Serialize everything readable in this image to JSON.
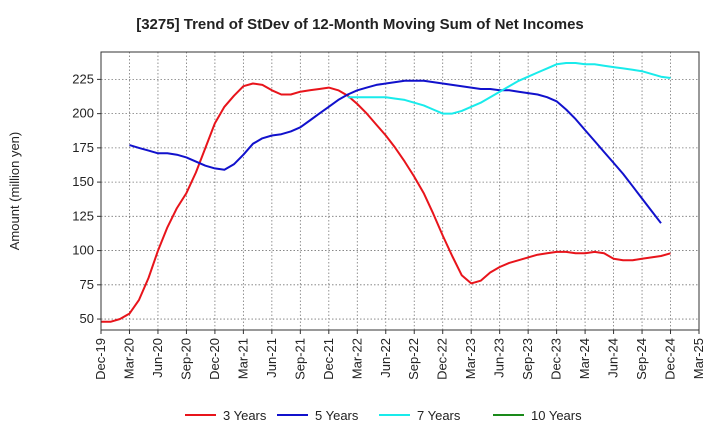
{
  "chart_data": {
    "type": "line",
    "title": "[3275]  Trend of StDev of 12-Month Moving Sum of Net Incomes",
    "ylabel": "Amount (million yen)",
    "xlabel": "",
    "ylim": [
      42,
      245
    ],
    "yticks": [
      50,
      75,
      100,
      125,
      150,
      175,
      200,
      225
    ],
    "xlim": [
      "2019-12",
      "2025-03"
    ],
    "xtick_labels": [
      "Dec-19",
      "Mar-20",
      "Jun-20",
      "Sep-20",
      "Dec-20",
      "Mar-21",
      "Jun-21",
      "Sep-21",
      "Dec-21",
      "Mar-22",
      "Jun-22",
      "Sep-22",
      "Dec-22",
      "Mar-23",
      "Jun-23",
      "Sep-23",
      "Dec-23",
      "Mar-24",
      "Jun-24",
      "Sep-24",
      "Dec-24",
      "Mar-25"
    ],
    "grid": true,
    "legend_position": "bottom",
    "series": [
      {
        "name": "3 Years",
        "color": "#e8141b",
        "points": [
          [
            "2019-12",
            48
          ],
          [
            "2020-01",
            48
          ],
          [
            "2020-02",
            50
          ],
          [
            "2020-03",
            54
          ],
          [
            "2020-04",
            64
          ],
          [
            "2020-05",
            80
          ],
          [
            "2020-06",
            100
          ],
          [
            "2020-07",
            117
          ],
          [
            "2020-08",
            131
          ],
          [
            "2020-09",
            142
          ],
          [
            "2020-10",
            157
          ],
          [
            "2020-11",
            175
          ],
          [
            "2020-12",
            193
          ],
          [
            "2021-01",
            205
          ],
          [
            "2021-02",
            213
          ],
          [
            "2021-03",
            220
          ],
          [
            "2021-04",
            222
          ],
          [
            "2021-05",
            221
          ],
          [
            "2021-06",
            217
          ],
          [
            "2021-07",
            214
          ],
          [
            "2021-08",
            214
          ],
          [
            "2021-09",
            216
          ],
          [
            "2021-10",
            217
          ],
          [
            "2021-11",
            218
          ],
          [
            "2021-12",
            219
          ],
          [
            "2022-01",
            217
          ],
          [
            "2022-02",
            213
          ],
          [
            "2022-03",
            207
          ],
          [
            "2022-04",
            200
          ],
          [
            "2022-05",
            192
          ],
          [
            "2022-06",
            184
          ],
          [
            "2022-07",
            175
          ],
          [
            "2022-08",
            165
          ],
          [
            "2022-09",
            154
          ],
          [
            "2022-10",
            142
          ],
          [
            "2022-11",
            127
          ],
          [
            "2022-12",
            111
          ],
          [
            "2023-01",
            96
          ],
          [
            "2023-02",
            82
          ],
          [
            "2023-03",
            76
          ],
          [
            "2023-04",
            78
          ],
          [
            "2023-05",
            84
          ],
          [
            "2023-06",
            88
          ],
          [
            "2023-07",
            91
          ],
          [
            "2023-08",
            93
          ],
          [
            "2023-09",
            95
          ],
          [
            "2023-10",
            97
          ],
          [
            "2023-11",
            98
          ],
          [
            "2023-12",
            99
          ],
          [
            "2024-01",
            99
          ],
          [
            "2024-02",
            98
          ],
          [
            "2024-03",
            98
          ],
          [
            "2024-04",
            99
          ],
          [
            "2024-05",
            98
          ],
          [
            "2024-06",
            94
          ],
          [
            "2024-07",
            93
          ],
          [
            "2024-08",
            93
          ],
          [
            "2024-09",
            94
          ],
          [
            "2024-10",
            95
          ],
          [
            "2024-11",
            96
          ],
          [
            "2024-12",
            98
          ]
        ]
      },
      {
        "name": "5 Years",
        "color": "#1111cc",
        "points": [
          [
            "2020-03",
            177
          ],
          [
            "2020-04",
            175
          ],
          [
            "2020-05",
            173
          ],
          [
            "2020-06",
            171
          ],
          [
            "2020-07",
            171
          ],
          [
            "2020-08",
            170
          ],
          [
            "2020-09",
            168
          ],
          [
            "2020-10",
            165
          ],
          [
            "2020-11",
            162
          ],
          [
            "2020-12",
            160
          ],
          [
            "2021-01",
            159
          ],
          [
            "2021-02",
            163
          ],
          [
            "2021-03",
            170
          ],
          [
            "2021-04",
            178
          ],
          [
            "2021-05",
            182
          ],
          [
            "2021-06",
            184
          ],
          [
            "2021-07",
            185
          ],
          [
            "2021-08",
            187
          ],
          [
            "2021-09",
            190
          ],
          [
            "2021-10",
            195
          ],
          [
            "2021-11",
            200
          ],
          [
            "2021-12",
            205
          ],
          [
            "2022-01",
            210
          ],
          [
            "2022-02",
            214
          ],
          [
            "2022-03",
            217
          ],
          [
            "2022-04",
            219
          ],
          [
            "2022-05",
            221
          ],
          [
            "2022-06",
            222
          ],
          [
            "2022-07",
            223
          ],
          [
            "2022-08",
            224
          ],
          [
            "2022-09",
            224
          ],
          [
            "2022-10",
            224
          ],
          [
            "2022-11",
            223
          ],
          [
            "2022-12",
            222
          ],
          [
            "2023-01",
            221
          ],
          [
            "2023-02",
            220
          ],
          [
            "2023-03",
            219
          ],
          [
            "2023-04",
            218
          ],
          [
            "2023-05",
            218
          ],
          [
            "2023-06",
            217
          ],
          [
            "2023-07",
            217
          ],
          [
            "2023-08",
            216
          ],
          [
            "2023-09",
            215
          ],
          [
            "2023-10",
            214
          ],
          [
            "2023-11",
            212
          ],
          [
            "2023-12",
            209
          ],
          [
            "2024-01",
            203
          ],
          [
            "2024-02",
            196
          ],
          [
            "2024-03",
            188
          ],
          [
            "2024-04",
            180
          ],
          [
            "2024-05",
            172
          ],
          [
            "2024-06",
            164
          ],
          [
            "2024-07",
            156
          ],
          [
            "2024-08",
            147
          ],
          [
            "2024-09",
            138
          ],
          [
            "2024-10",
            129
          ],
          [
            "2024-11",
            120
          ]
        ]
      },
      {
        "name": "7 Years",
        "color": "#19ebeb",
        "points": [
          [
            "2022-02",
            212
          ],
          [
            "2022-03",
            212
          ],
          [
            "2022-04",
            212
          ],
          [
            "2022-05",
            212
          ],
          [
            "2022-06",
            212
          ],
          [
            "2022-07",
            211
          ],
          [
            "2022-08",
            210
          ],
          [
            "2022-09",
            208
          ],
          [
            "2022-10",
            206
          ],
          [
            "2022-11",
            203
          ],
          [
            "2022-12",
            200
          ],
          [
            "2023-01",
            200
          ],
          [
            "2023-02",
            202
          ],
          [
            "2023-03",
            205
          ],
          [
            "2023-04",
            208
          ],
          [
            "2023-05",
            212
          ],
          [
            "2023-06",
            216
          ],
          [
            "2023-07",
            220
          ],
          [
            "2023-08",
            224
          ],
          [
            "2023-09",
            227
          ],
          [
            "2023-10",
            230
          ],
          [
            "2023-11",
            233
          ],
          [
            "2023-12",
            236
          ],
          [
            "2024-01",
            237
          ],
          [
            "2024-02",
            237
          ],
          [
            "2024-03",
            236
          ],
          [
            "2024-04",
            236
          ],
          [
            "2024-05",
            235
          ],
          [
            "2024-06",
            234
          ],
          [
            "2024-07",
            233
          ],
          [
            "2024-08",
            232
          ],
          [
            "2024-09",
            231
          ],
          [
            "2024-10",
            229
          ],
          [
            "2024-11",
            227
          ],
          [
            "2024-12",
            226
          ]
        ]
      },
      {
        "name": "10 Years",
        "color": "#1a8a1a",
        "points": []
      }
    ]
  }
}
